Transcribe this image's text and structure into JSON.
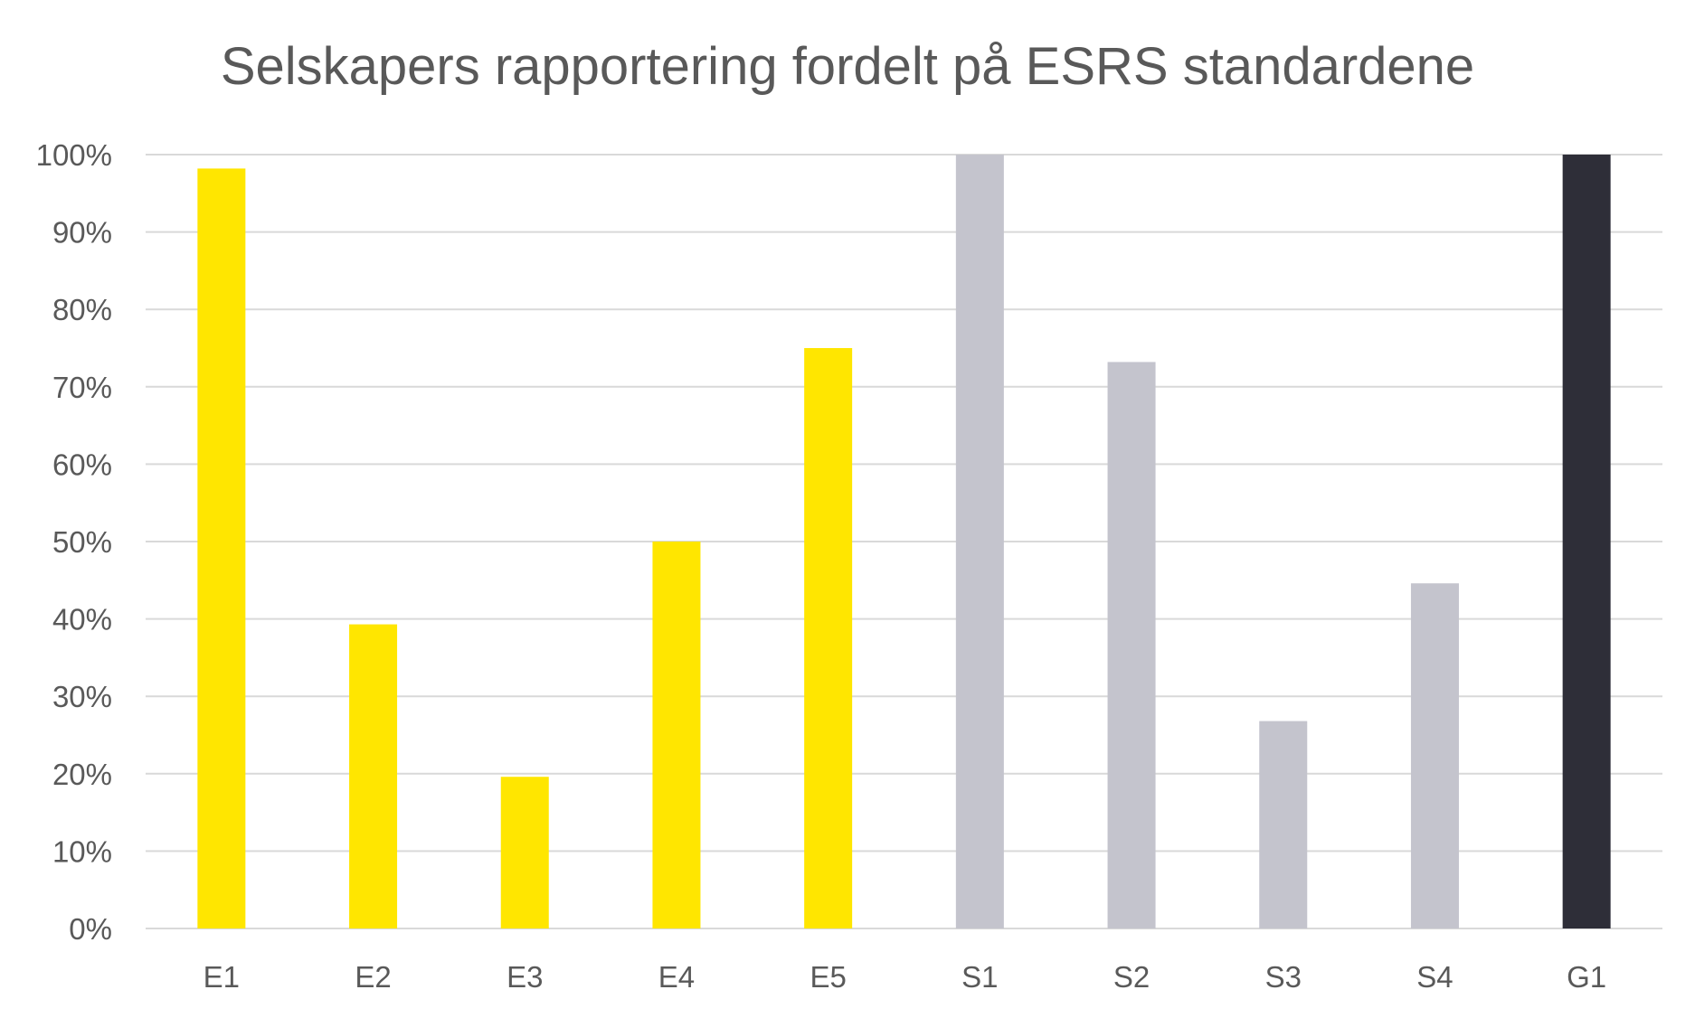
{
  "chart_data": {
    "type": "bar",
    "title": "Selskapers rapportering fordelt på ESRS standardene",
    "xlabel": "",
    "ylabel": "",
    "categories": [
      "E1",
      "E2",
      "E3",
      "E4",
      "E5",
      "S1",
      "S2",
      "S3",
      "S4",
      "G1"
    ],
    "values": [
      0.982,
      0.393,
      0.196,
      0.5,
      0.75,
      1.0,
      0.732,
      0.268,
      0.446,
      1.0
    ],
    "bar_colors": [
      "#FFE600",
      "#FFE600",
      "#FFE600",
      "#FFE600",
      "#FFE600",
      "#C4C4CD",
      "#C4C4CD",
      "#C4C4CD",
      "#C4C4CD",
      "#2E2E38"
    ],
    "ylim": [
      0,
      1
    ],
    "yticks": [
      0,
      0.1,
      0.2,
      0.3,
      0.4,
      0.5,
      0.6,
      0.7,
      0.8,
      0.9,
      1.0
    ],
    "ytick_labels": [
      "0%",
      "10%",
      "20%",
      "30%",
      "40%",
      "50%",
      "60%",
      "70%",
      "80%",
      "90%",
      "100%"
    ],
    "grid": true,
    "legend": "none"
  }
}
